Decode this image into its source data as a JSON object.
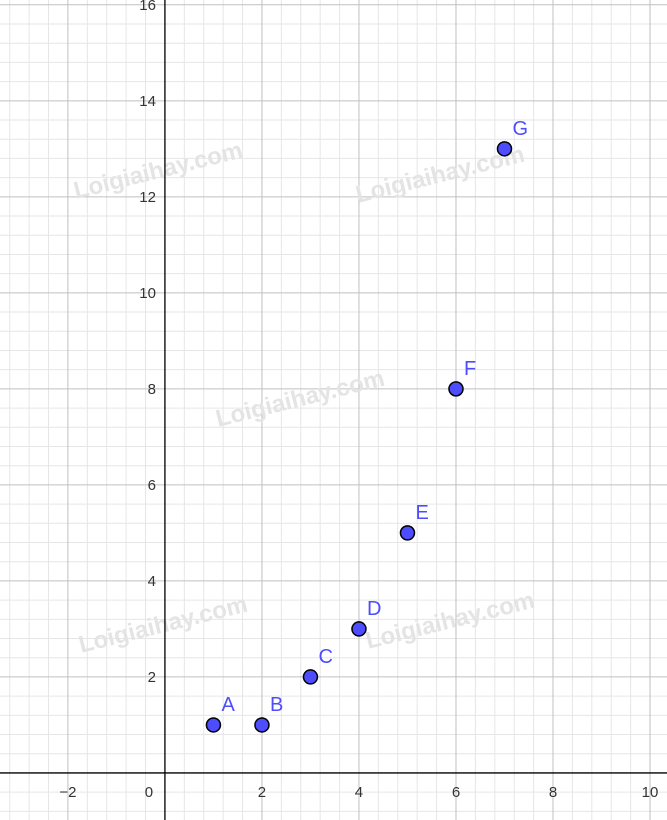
{
  "chart_data": {
    "type": "scatter",
    "title": "",
    "xlabel": "",
    "ylabel": "",
    "xlim": [
      -3.4,
      10.35
    ],
    "ylim": [
      -0.98,
      16.1
    ],
    "grid": true,
    "major_grid_step": 2,
    "minor_grid_step": 0.4,
    "x_ticks": [
      -2,
      0,
      2,
      4,
      6,
      8,
      10
    ],
    "y_ticks": [
      2,
      4,
      6,
      8,
      10,
      12,
      14,
      16
    ],
    "points": [
      {
        "label": "A",
        "x": 1,
        "y": 1
      },
      {
        "label": "B",
        "x": 2,
        "y": 1
      },
      {
        "label": "C",
        "x": 3,
        "y": 2
      },
      {
        "label": "D",
        "x": 4,
        "y": 3
      },
      {
        "label": "E",
        "x": 5,
        "y": 5
      },
      {
        "label": "F",
        "x": 6,
        "y": 8
      },
      {
        "label": "G",
        "x": 7,
        "y": 13
      }
    ],
    "colors": {
      "point_fill": "#4d4dff",
      "point_stroke": "#000000",
      "label": "#4d4dff",
      "major_grid": "#c0c0c0",
      "minor_grid": "#e6e6e6",
      "axis": "#000000"
    }
  },
  "watermark": "Loigiaihay.com"
}
